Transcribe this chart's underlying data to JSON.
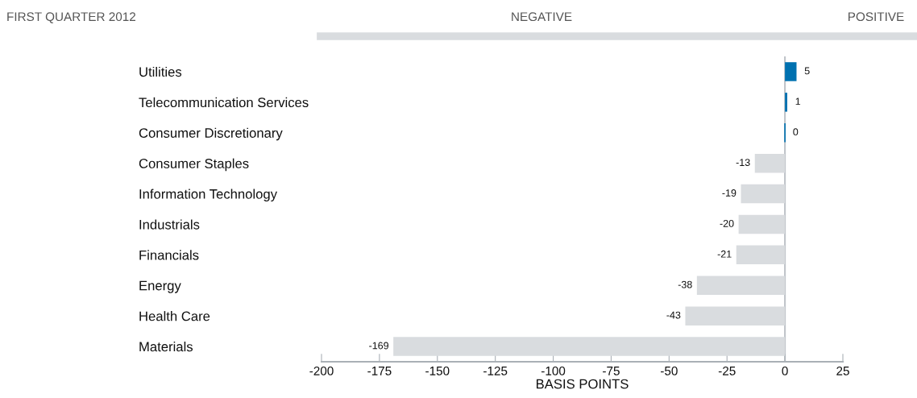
{
  "chart_data": {
    "type": "bar",
    "orientation": "horizontal",
    "title": "FIRST QUARTER 2012",
    "xlabel": "BASIS POINTS",
    "categories": [
      "Utilities",
      "Telecommunication Services",
      "Consumer Discretionary",
      "Consumer Staples",
      "Information Technology",
      "Industrials",
      "Financials",
      "Energy",
      "Health Care",
      "Materials"
    ],
    "values": [
      5,
      1,
      0,
      -13,
      -19,
      -20,
      -21,
      -38,
      -43,
      -169
    ],
    "colors": [
      "#0071b0",
      "#0071b0",
      "#0071b0",
      "#d9dcdf",
      "#d9dcdf",
      "#d9dcdf",
      "#d9dcdf",
      "#d9dcdf",
      "#d9dcdf",
      "#d9dcdf"
    ],
    "xlim": [
      -200,
      25
    ],
    "xticks": [
      -200,
      -175,
      -150,
      -125,
      -100,
      -75,
      -50,
      -25,
      0,
      25
    ],
    "annotations": [
      "NEGATIVE",
      "POSITIVE"
    ],
    "ref_lines": [
      {
        "axis": "x",
        "value": 0,
        "color": "#bfc4c9"
      }
    ],
    "data_labels": true,
    "grid": false,
    "legend": false
  }
}
